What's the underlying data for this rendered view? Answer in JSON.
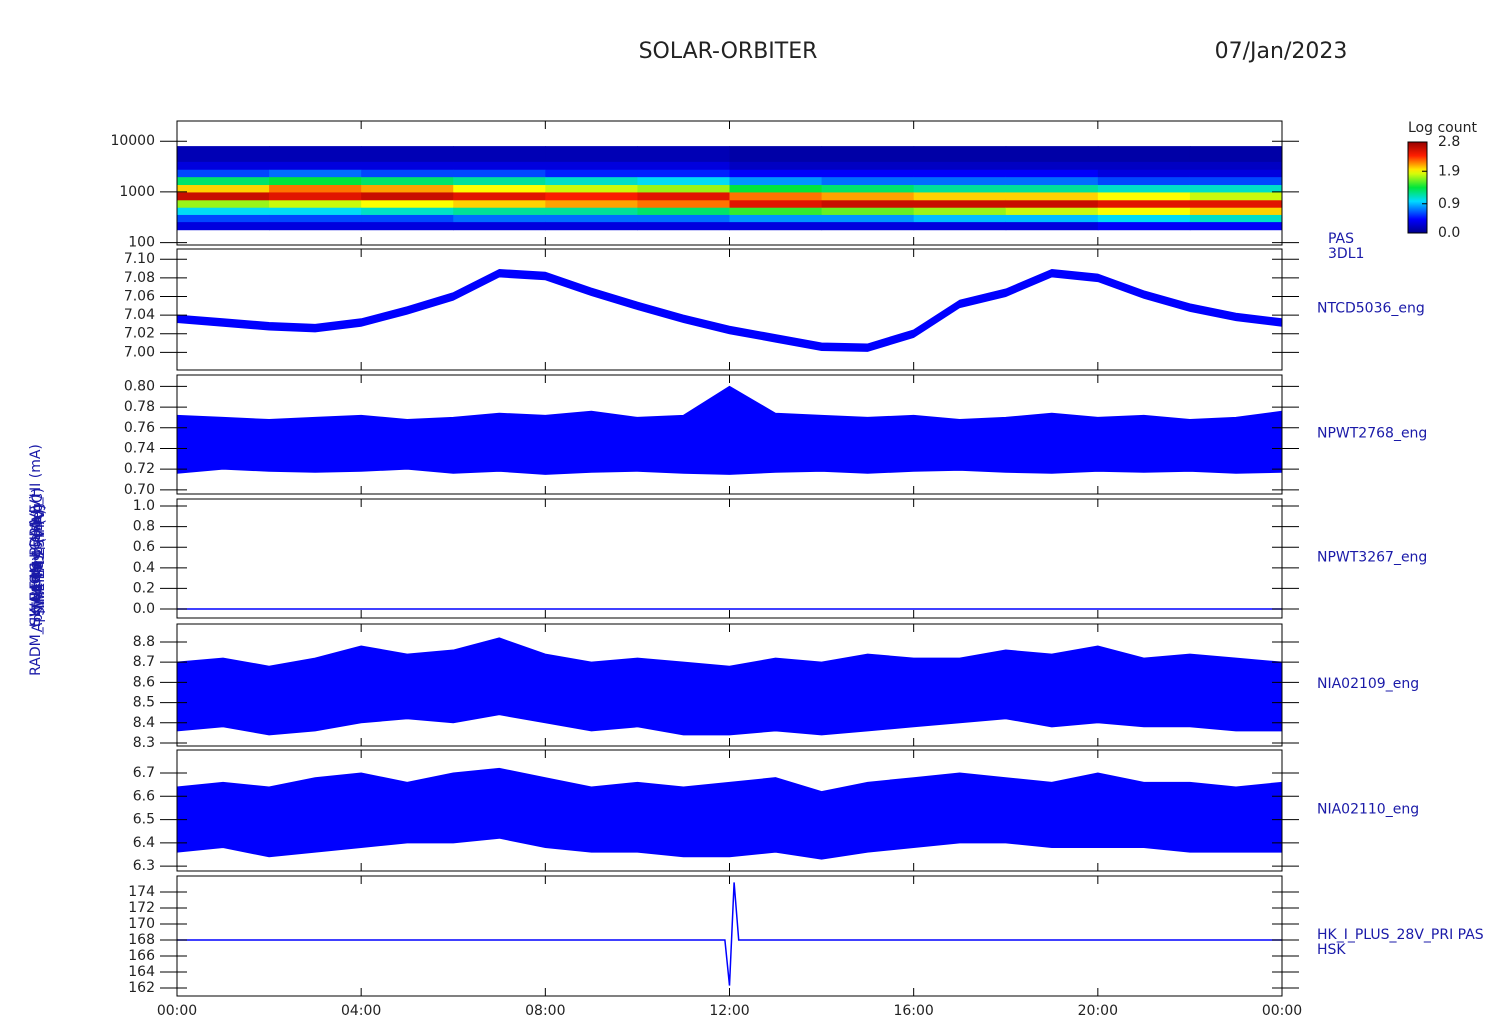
{
  "page": {
    "title": "SOLAR-ORBITER",
    "date": "07/Jan/2023"
  },
  "chart_data": [
    {
      "type": "spectrogram",
      "ylabel": "Energy (eV)",
      "labels": [
        "PAS",
        "3DL1"
      ],
      "log": true,
      "xlim": [
        0,
        24
      ],
      "ylim": [
        90,
        25000
      ],
      "yticks": [
        100,
        1000,
        10000
      ],
      "x_bins": [
        0,
        2,
        4,
        6,
        8,
        10,
        12,
        14,
        16,
        18,
        20,
        22,
        24
      ],
      "y_bins": [
        180,
        260,
        360,
        500,
        700,
        1000,
        1400,
        2000,
        2800,
        4000,
        8000
      ],
      "values": [
        [
          0.3,
          0.6,
          1.0,
          1.7,
          2.6,
          2.0,
          1.3,
          0.6,
          0.3,
          0.15
        ],
        [
          0.3,
          0.6,
          1.0,
          1.8,
          2.5,
          2.2,
          1.4,
          0.7,
          0.3,
          0.15
        ],
        [
          0.3,
          0.6,
          1.1,
          1.9,
          2.6,
          2.1,
          1.3,
          0.6,
          0.3,
          0.15
        ],
        [
          0.3,
          0.7,
          1.2,
          2.0,
          2.5,
          1.9,
          1.2,
          0.6,
          0.3,
          0.15
        ],
        [
          0.3,
          0.7,
          1.2,
          2.1,
          2.4,
          1.8,
          1.1,
          0.5,
          0.3,
          0.15
        ],
        [
          0.3,
          0.7,
          1.3,
          2.2,
          2.5,
          1.7,
          1.0,
          0.5,
          0.3,
          0.15
        ],
        [
          0.3,
          0.8,
          1.5,
          2.5,
          2.2,
          1.4,
          0.8,
          0.4,
          0.2,
          0.1
        ],
        [
          0.3,
          0.8,
          1.6,
          2.6,
          2.1,
          1.3,
          0.7,
          0.4,
          0.2,
          0.1
        ],
        [
          0.3,
          0.9,
          1.7,
          2.6,
          2.0,
          1.2,
          0.7,
          0.4,
          0.2,
          0.1
        ],
        [
          0.3,
          0.9,
          1.8,
          2.6,
          2.0,
          1.2,
          0.7,
          0.4,
          0.2,
          0.1
        ],
        [
          0.4,
          1.0,
          1.9,
          2.5,
          1.9,
          1.1,
          0.6,
          0.3,
          0.2,
          0.1
        ],
        [
          0.4,
          1.1,
          2.0,
          2.5,
          1.8,
          1.1,
          0.6,
          0.3,
          0.2,
          0.1
        ]
      ],
      "colorbar": {
        "title": "Log count",
        "zlim": [
          0,
          2.8
        ],
        "zticks": [
          {
            "value": 0,
            "label": "0.0"
          },
          0.9,
          1.9,
          2.8
        ]
      }
    },
    {
      "type": "band",
      "ylabel": "Approx Temp (DegC)",
      "labels": [
        "NTCD5036_eng"
      ],
      "color": "#0000ff",
      "xlim": [
        0,
        24
      ],
      "ylim": [
        6.981,
        7.111
      ],
      "yticks": [
        {
          "value": 7,
          "label": "7.00"
        },
        7.02,
        7.04,
        7.06,
        7.08,
        {
          "value": 7.1,
          "label": "7.10"
        }
      ],
      "x": [
        0,
        1,
        2,
        3,
        4,
        5,
        6,
        7,
        8,
        9,
        10,
        11,
        12,
        13,
        14,
        15,
        16,
        17,
        18,
        19,
        20,
        21,
        22,
        23,
        24
      ],
      "low": [
        7.032,
        7.028,
        7.024,
        7.022,
        7.028,
        7.041,
        7.056,
        7.081,
        7.078,
        7.061,
        7.046,
        7.032,
        7.02,
        7.011,
        7.002,
        7.001,
        7.016,
        7.048,
        7.06,
        7.081,
        7.076,
        7.058,
        7.044,
        7.034,
        7.028
      ],
      "high": [
        7.04,
        7.036,
        7.032,
        7.03,
        7.036,
        7.049,
        7.064,
        7.089,
        7.086,
        7.069,
        7.054,
        7.04,
        7.028,
        7.019,
        7.01,
        7.009,
        7.024,
        7.056,
        7.068,
        7.089,
        7.084,
        7.066,
        7.052,
        7.042,
        7.036
      ]
    },
    {
      "type": "band",
      "ylabel": "SWA-EAS 5V (V)",
      "labels": [
        "NPWT2768_eng"
      ],
      "color": "#0000ff",
      "xlim": [
        0,
        24
      ],
      "ylim": [
        0.696,
        0.811
      ],
      "yticks": [
        {
          "value": 0.7,
          "label": "0.70"
        },
        0.72,
        0.74,
        0.76,
        0.78,
        {
          "value": 0.8,
          "label": "0.80"
        }
      ],
      "x": [
        0,
        1,
        2,
        3,
        4,
        5,
        6,
        7,
        8,
        9,
        10,
        11,
        12,
        13,
        14,
        15,
        16,
        17,
        18,
        19,
        20,
        21,
        22,
        23,
        24
      ],
      "low": [
        0.716,
        0.72,
        0.718,
        0.717,
        0.718,
        0.72,
        0.716,
        0.718,
        0.715,
        0.717,
        0.718,
        0.716,
        0.715,
        0.717,
        0.718,
        0.716,
        0.718,
        0.719,
        0.717,
        0.716,
        0.718,
        0.717,
        0.718,
        0.716,
        0.717
      ],
      "high": [
        0.772,
        0.77,
        0.768,
        0.77,
        0.772,
        0.768,
        0.77,
        0.774,
        0.772,
        0.776,
        0.77,
        0.772,
        0.8,
        0.774,
        0.772,
        0.77,
        0.772,
        0.768,
        0.77,
        0.774,
        0.77,
        0.772,
        0.768,
        0.77,
        0.776
      ]
    },
    {
      "type": "line",
      "ylabel": "SWA-EAS LCL 1 (V)",
      "labels": [
        "NPWT3267_eng"
      ],
      "color": "#0000ff",
      "xlim": [
        0,
        24
      ],
      "ylim": [
        -0.087,
        1.068
      ],
      "yticks": [
        {
          "value": 0,
          "label": "0.0"
        },
        0.2,
        0.4,
        0.6,
        0.8,
        {
          "value": 1,
          "label": "1.0"
        }
      ],
      "x": [
        0,
        1,
        2,
        3,
        4,
        5,
        6,
        7,
        8,
        9,
        10,
        11,
        12,
        13,
        14,
        15,
        16,
        17,
        18,
        19,
        20,
        21,
        22,
        23,
        24
      ],
      "values": [
        0,
        0,
        0,
        0,
        0,
        0,
        0,
        0,
        0,
        0,
        0,
        0,
        0,
        0,
        0,
        0,
        0,
        0,
        0,
        0,
        0,
        0,
        0,
        0,
        0
      ]
    },
    {
      "type": "band",
      "ylabel": "THERM 1 (mA)",
      "labels": [
        "NIA02109_eng"
      ],
      "color": "#0000ff",
      "xlim": [
        0,
        24
      ],
      "ylim": [
        8.285,
        8.889
      ],
      "yticks": [
        8.3,
        8.4,
        8.5,
        8.6,
        8.7,
        8.8
      ],
      "x": [
        0,
        1,
        2,
        3,
        4,
        5,
        6,
        7,
        8,
        9,
        10,
        11,
        12,
        13,
        14,
        15,
        16,
        17,
        18,
        19,
        20,
        21,
        22,
        23,
        24
      ],
      "low": [
        8.36,
        8.38,
        8.34,
        8.36,
        8.4,
        8.42,
        8.4,
        8.44,
        8.4,
        8.36,
        8.38,
        8.34,
        8.34,
        8.36,
        8.34,
        8.36,
        8.38,
        8.4,
        8.42,
        8.38,
        8.4,
        8.38,
        8.38,
        8.36,
        8.36
      ],
      "high": [
        8.7,
        8.72,
        8.68,
        8.72,
        8.78,
        8.74,
        8.76,
        8.82,
        8.74,
        8.7,
        8.72,
        8.7,
        8.68,
        8.72,
        8.7,
        8.74,
        8.72,
        8.72,
        8.76,
        8.74,
        8.78,
        8.72,
        8.74,
        8.72,
        8.7
      ]
    },
    {
      "type": "band",
      "ylabel": "THERM 2 (mA)",
      "labels": [
        "NIA02110_eng"
      ],
      "color": "#0000ff",
      "xlim": [
        0,
        24
      ],
      "ylim": [
        6.279,
        6.799
      ],
      "yticks": [
        6.3,
        6.4,
        6.5,
        6.6,
        6.7
      ],
      "x": [
        0,
        1,
        2,
        3,
        4,
        5,
        6,
        7,
        8,
        9,
        10,
        11,
        12,
        13,
        14,
        15,
        16,
        17,
        18,
        19,
        20,
        21,
        22,
        23,
        24
      ],
      "low": [
        6.36,
        6.38,
        6.34,
        6.36,
        6.38,
        6.4,
        6.4,
        6.42,
        6.38,
        6.36,
        6.36,
        6.34,
        6.34,
        6.36,
        6.33,
        6.36,
        6.38,
        6.4,
        6.4,
        6.38,
        6.38,
        6.38,
        6.36,
        6.36,
        6.36
      ],
      "high": [
        6.64,
        6.66,
        6.64,
        6.68,
        6.7,
        6.66,
        6.7,
        6.72,
        6.68,
        6.64,
        6.66,
        6.64,
        6.66,
        6.68,
        6.62,
        6.66,
        6.68,
        6.7,
        6.68,
        6.66,
        6.7,
        6.66,
        6.66,
        6.64,
        6.66
      ]
    },
    {
      "type": "line",
      "ylabel": "RADM_HK_IMON_PDRIVE_HI (mA)",
      "labels": [
        "HK_I_PLUS_28V_PRI PAS",
        "HSK"
      ],
      "color": "#0000ff",
      "xlim": [
        0,
        24
      ],
      "ylim": [
        161,
        176
      ],
      "yticks": [
        162,
        164,
        166,
        168,
        170,
        172,
        174
      ],
      "xticks": [
        {
          "value": 0,
          "label": "00:00"
        },
        {
          "value": 4,
          "label": "04:00"
        },
        {
          "value": 8,
          "label": "08:00"
        },
        {
          "value": 12,
          "label": "12:00"
        },
        {
          "value": 16,
          "label": "16:00"
        },
        {
          "value": 20,
          "label": "20:00"
        },
        {
          "value": 24,
          "label": "00:00"
        }
      ],
      "x": [
        0,
        1,
        2,
        3,
        4,
        5,
        6,
        7,
        8,
        9,
        10,
        11,
        11.9,
        12.0,
        12.1,
        12.2,
        13,
        14,
        15,
        16,
        17,
        18,
        19,
        20,
        21,
        22,
        23,
        24
      ],
      "values": [
        168,
        168,
        168,
        168,
        168,
        168,
        168,
        168,
        168,
        168,
        168,
        168,
        168,
        162.3,
        175.2,
        168,
        168,
        168,
        168,
        168,
        168,
        168,
        168,
        168,
        168,
        168,
        168,
        168
      ]
    }
  ]
}
